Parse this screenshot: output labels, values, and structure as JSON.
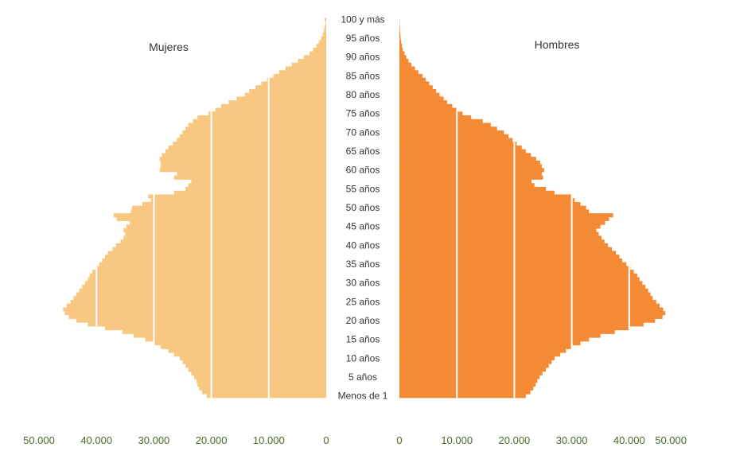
{
  "chart_data": {
    "type": "bar",
    "orientation": "horizontal",
    "subtype": "population-pyramid",
    "age_labels": [
      "Menos de 1",
      "5 años",
      "10 años",
      "15 años",
      "20 años",
      "25 años",
      "30 años",
      "35 años",
      "40 años",
      "45 años",
      "50 años",
      "55 años",
      "60 años",
      "65 años",
      "70 años",
      "75 años",
      "80 años",
      "85 años",
      "90 años",
      "95 años",
      "100 y más"
    ],
    "ages": [
      0,
      1,
      2,
      3,
      4,
      5,
      6,
      7,
      8,
      9,
      10,
      11,
      12,
      13,
      14,
      15,
      16,
      17,
      18,
      19,
      20,
      21,
      22,
      23,
      24,
      25,
      26,
      27,
      28,
      29,
      30,
      31,
      32,
      33,
      34,
      35,
      36,
      37,
      38,
      39,
      40,
      41,
      42,
      43,
      44,
      45,
      46,
      47,
      48,
      49,
      50,
      51,
      52,
      53,
      54,
      55,
      56,
      57,
      58,
      59,
      60,
      61,
      62,
      63,
      64,
      65,
      66,
      67,
      68,
      69,
      70,
      71,
      72,
      73,
      74,
      75,
      76,
      77,
      78,
      79,
      80,
      81,
      82,
      83,
      84,
      85,
      86,
      87,
      88,
      89,
      90,
      91,
      92,
      93,
      94,
      95,
      96,
      97,
      98,
      99,
      100
    ],
    "series": [
      {
        "name": "Mujeres",
        "side": "left",
        "color": "#f8c882",
        "values": [
          20800,
          21600,
          22100,
          22400,
          22600,
          23000,
          23500,
          24000,
          24500,
          25000,
          25500,
          26500,
          27500,
          28800,
          30000,
          31500,
          33500,
          35500,
          38500,
          41500,
          43500,
          44800,
          45500,
          45800,
          45200,
          44500,
          44000,
          43500,
          43000,
          42500,
          42000,
          41500,
          41200,
          40700,
          40000,
          39500,
          39000,
          38500,
          38000,
          37200,
          36600,
          35800,
          35300,
          35000,
          35300,
          34800,
          34200,
          36500,
          37000,
          34000,
          33800,
          32000,
          30500,
          31000,
          26500,
          24500,
          24000,
          23500,
          26500,
          26000,
          29000,
          28800,
          28800,
          29000,
          28600,
          28000,
          27500,
          26700,
          26000,
          25500,
          25000,
          24500,
          24000,
          23200,
          22400,
          20500,
          19300,
          18300,
          17000,
          15600,
          14200,
          13400,
          12300,
          11300,
          10300,
          9200,
          8200,
          7100,
          6000,
          4900,
          3900,
          2900,
          2300,
          1700,
          1300,
          900,
          600,
          400,
          250,
          120,
          250
        ]
      },
      {
        "name": "Hombres",
        "side": "right",
        "color": "#f58a35",
        "values": [
          22000,
          22800,
          23300,
          23700,
          24000,
          24400,
          24900,
          25500,
          26000,
          26500,
          27000,
          28000,
          29000,
          30000,
          31500,
          33000,
          35000,
          37500,
          40000,
          42500,
          44500,
          45800,
          46300,
          45900,
          45300,
          44700,
          44100,
          43700,
          43300,
          42800,
          42300,
          41800,
          41400,
          40800,
          40200,
          39500,
          38800,
          38300,
          37700,
          37000,
          36300,
          35700,
          35200,
          34700,
          34300,
          35000,
          35800,
          36500,
          37200,
          33000,
          32500,
          31500,
          30500,
          30000,
          27000,
          25500,
          23500,
          23000,
          25000,
          24800,
          25200,
          24800,
          24500,
          23800,
          22900,
          22000,
          21300,
          20400,
          19700,
          19000,
          18200,
          17000,
          15900,
          14500,
          12500,
          11000,
          9900,
          9200,
          8300,
          7700,
          7000,
          6400,
          5800,
          5200,
          4600,
          4000,
          3300,
          2700,
          2100,
          1600,
          1200,
          900,
          600,
          450,
          320,
          220,
          160,
          110,
          70,
          40,
          20
        ]
      }
    ],
    "x_tick_labels_left": [
      "50.000",
      "40.000",
      "30.000",
      "20.000",
      "10.000",
      "0"
    ],
    "x_tick_labels_right": [
      "0",
      "10.000",
      "20.000",
      "30.000",
      "40.000",
      "50.000"
    ],
    "x_tick_values": [
      50000,
      40000,
      30000,
      20000,
      10000,
      0
    ],
    "xlim": [
      0,
      50000
    ],
    "grid_lines": [
      10000,
      20000,
      30000,
      40000
    ],
    "grid_color": "#ffffff",
    "grid": true,
    "legend": "none"
  }
}
